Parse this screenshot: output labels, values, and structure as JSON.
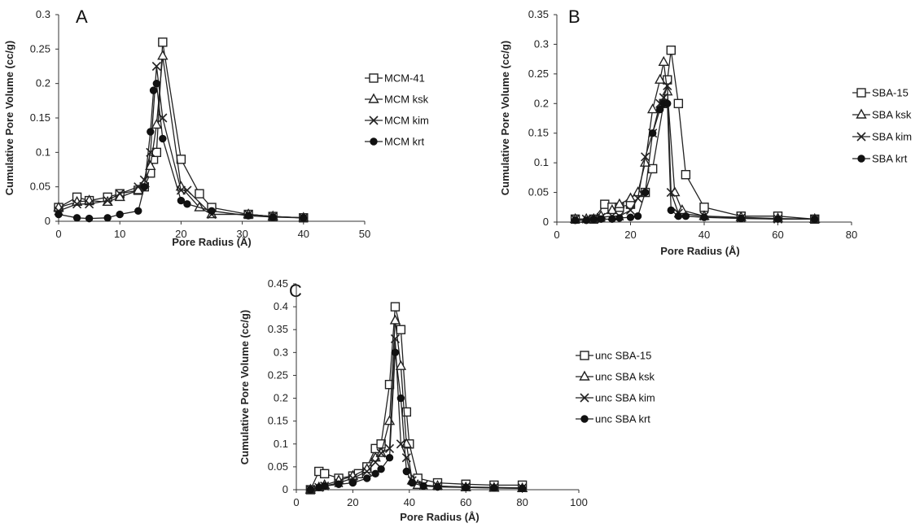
{
  "chart_data": [
    {
      "type": "line",
      "title": "A",
      "xlabel": "Pore Radius (Å)",
      "ylabel": "Cumulative Pore Volume (cc/g)",
      "xlim": [
        0,
        50
      ],
      "ylim": [
        0,
        0.3
      ],
      "xticks": [
        0,
        10,
        20,
        30,
        40,
        50
      ],
      "yticks": [
        0,
        0.05,
        0.1,
        0.15,
        0.2,
        0.25,
        0.3
      ],
      "ytick_labels": [
        "0",
        "0.05",
        "0.1",
        "0.15",
        "0.2",
        "0.25",
        "0.3"
      ],
      "legend_position": "right",
      "series": [
        {
          "name": "MCM-41",
          "marker": "square",
          "x": [
            0,
            3,
            5,
            8,
            10,
            13,
            14,
            15,
            15.5,
            16,
            17,
            20,
            23,
            25,
            31,
            35,
            40
          ],
          "y": [
            0.02,
            0.035,
            0.03,
            0.035,
            0.04,
            0.045,
            0.05,
            0.07,
            0.09,
            0.1,
            0.26,
            0.09,
            0.04,
            0.02,
            0.01,
            0.007,
            0.005
          ]
        },
        {
          "name": "MCM ksk",
          "marker": "triangle",
          "x": [
            0,
            3,
            5,
            8,
            10,
            13,
            14,
            15,
            16,
            17,
            20,
            23,
            25,
            31,
            35,
            40
          ],
          "y": [
            0.02,
            0.028,
            0.03,
            0.028,
            0.035,
            0.045,
            0.055,
            0.08,
            0.14,
            0.24,
            0.05,
            0.02,
            0.01,
            0.01,
            0.007,
            0.005
          ]
        },
        {
          "name": "MCM kim",
          "marker": "x",
          "x": [
            0,
            3,
            5,
            8,
            10,
            13,
            14,
            15,
            16,
            17,
            20,
            21,
            25,
            31,
            35,
            40
          ],
          "y": [
            0.015,
            0.025,
            0.025,
            0.03,
            0.04,
            0.05,
            0.06,
            0.1,
            0.225,
            0.15,
            0.045,
            0.045,
            0.01,
            0.01,
            0.007,
            0.005
          ]
        },
        {
          "name": "MCM krt",
          "marker": "dot",
          "x": [
            0,
            3,
            5,
            8,
            10,
            13,
            14,
            15,
            15.5,
            16,
            17,
            20,
            21,
            25,
            31,
            35,
            40
          ],
          "y": [
            0.01,
            0.005,
            0.004,
            0.005,
            0.01,
            0.015,
            0.05,
            0.13,
            0.19,
            0.2,
            0.12,
            0.03,
            0.025,
            0.015,
            0.008,
            0.006,
            0.005
          ]
        }
      ]
    },
    {
      "type": "line",
      "title": "B",
      "xlabel": "Pore Radius (Å)",
      "ylabel": "Cumulative Pore Volume (cc/g)",
      "xlim": [
        0,
        80
      ],
      "ylim": [
        0,
        0.35
      ],
      "xticks": [
        0,
        20,
        40,
        60,
        80
      ],
      "yticks": [
        0,
        0.05,
        0.1,
        0.15,
        0.2,
        0.25,
        0.3,
        0.35
      ],
      "ytick_labels": [
        "0",
        "0.05",
        "0.1",
        "0.15",
        "0.2",
        "0.25",
        "0.3",
        "0.35"
      ],
      "legend_position": "right",
      "series": [
        {
          "name": "SBA-15",
          "marker": "square",
          "x": [
            5,
            10,
            13,
            15,
            17,
            20,
            24,
            26,
            29,
            30,
            31,
            33,
            35,
            40,
            50,
            60,
            70
          ],
          "y": [
            0.005,
            0.005,
            0.03,
            0.025,
            0.025,
            0.03,
            0.05,
            0.09,
            0.2,
            0.24,
            0.29,
            0.2,
            0.08,
            0.025,
            0.01,
            0.01,
            0.005
          ]
        },
        {
          "name": "SBA ksk",
          "marker": "triangle",
          "x": [
            5,
            8,
            10,
            12,
            15,
            17,
            20,
            22,
            24,
            26,
            28,
            29,
            30,
            32,
            34,
            40,
            50,
            60,
            70
          ],
          "y": [
            0.005,
            0.005,
            0.005,
            0.01,
            0.02,
            0.03,
            0.04,
            0.05,
            0.1,
            0.19,
            0.24,
            0.27,
            0.22,
            0.05,
            0.02,
            0.01,
            0.008,
            0.006,
            0.005
          ]
        },
        {
          "name": "SBA kim",
          "marker": "x",
          "x": [
            5,
            8,
            10,
            12,
            15,
            17,
            20,
            22,
            24,
            26,
            28,
            29,
            30,
            31,
            33,
            40,
            50,
            60,
            70
          ],
          "y": [
            0.005,
            0.005,
            0.005,
            0.008,
            0.01,
            0.01,
            0.02,
            0.04,
            0.11,
            0.15,
            0.2,
            0.21,
            0.23,
            0.05,
            0.015,
            0.01,
            0.007,
            0.005,
            0.005
          ]
        },
        {
          "name": "SBA krt",
          "marker": "dot",
          "x": [
            5,
            8,
            10,
            12,
            15,
            17,
            20,
            22,
            24,
            26,
            28,
            29,
            30,
            31,
            33,
            35,
            40,
            50,
            60,
            70
          ],
          "y": [
            0.003,
            0.003,
            0.005,
            0.005,
            0.005,
            0.007,
            0.008,
            0.01,
            0.05,
            0.15,
            0.19,
            0.2,
            0.2,
            0.02,
            0.01,
            0.01,
            0.008,
            0.006,
            0.005,
            0.005
          ]
        }
      ]
    },
    {
      "type": "line",
      "title": "C",
      "xlabel": "Pore Radius (Å)",
      "ylabel": "Cumulative Pore Volume (cc/g)",
      "xlim": [
        0,
        100
      ],
      "ylim": [
        0,
        0.45
      ],
      "xticks": [
        0,
        20,
        40,
        60,
        80,
        100
      ],
      "yticks": [
        0,
        0.05,
        0.1,
        0.15,
        0.2,
        0.25,
        0.3,
        0.35,
        0.4,
        0.45
      ],
      "ytick_labels": [
        "0",
        "0.05",
        "0.1",
        "0.15",
        "0.2",
        "0.25",
        "0.3",
        "0.35",
        "0.4",
        "0.45"
      ],
      "legend_position": "right",
      "series": [
        {
          "name": "unc SBA-15",
          "marker": "square",
          "x": [
            5,
            8,
            10,
            15,
            20,
            22,
            25,
            28,
            30,
            33,
            35,
            37,
            39,
            40,
            43,
            50,
            60,
            70,
            80
          ],
          "y": [
            0,
            0.04,
            0.035,
            0.025,
            0.03,
            0.035,
            0.05,
            0.09,
            0.1,
            0.23,
            0.4,
            0.35,
            0.17,
            0.1,
            0.025,
            0.015,
            0.012,
            0.01,
            0.01
          ]
        },
        {
          "name": "unc SBA ksk",
          "marker": "triangle",
          "x": [
            5,
            8,
            10,
            15,
            20,
            25,
            28,
            30,
            33,
            35,
            37,
            39,
            41,
            43,
            50,
            60,
            70,
            80
          ],
          "y": [
            0,
            0.005,
            0.01,
            0.02,
            0.03,
            0.045,
            0.07,
            0.08,
            0.15,
            0.37,
            0.27,
            0.1,
            0.02,
            0.01,
            0.008,
            0.005,
            0.004,
            0.003
          ]
        },
        {
          "name": "unc SBA kim",
          "marker": "x",
          "x": [
            5,
            8,
            10,
            15,
            20,
            25,
            28,
            30,
            33,
            35,
            37,
            39,
            41,
            45,
            50,
            60,
            70,
            80
          ],
          "y": [
            0,
            0.005,
            0.008,
            0.015,
            0.025,
            0.04,
            0.06,
            0.08,
            0.09,
            0.33,
            0.1,
            0.07,
            0.02,
            0.01,
            0.008,
            0.006,
            0.005,
            0.004
          ]
        },
        {
          "name": "unc SBA krt",
          "marker": "dot",
          "x": [
            5,
            8,
            10,
            15,
            20,
            25,
            28,
            30,
            33,
            35,
            37,
            39,
            41,
            45,
            50,
            60,
            70,
            80
          ],
          "y": [
            0,
            0.005,
            0.008,
            0.012,
            0.015,
            0.025,
            0.035,
            0.045,
            0.07,
            0.3,
            0.2,
            0.04,
            0.015,
            0.008,
            0.006,
            0.005,
            0.004,
            0.003
          ]
        }
      ]
    }
  ]
}
